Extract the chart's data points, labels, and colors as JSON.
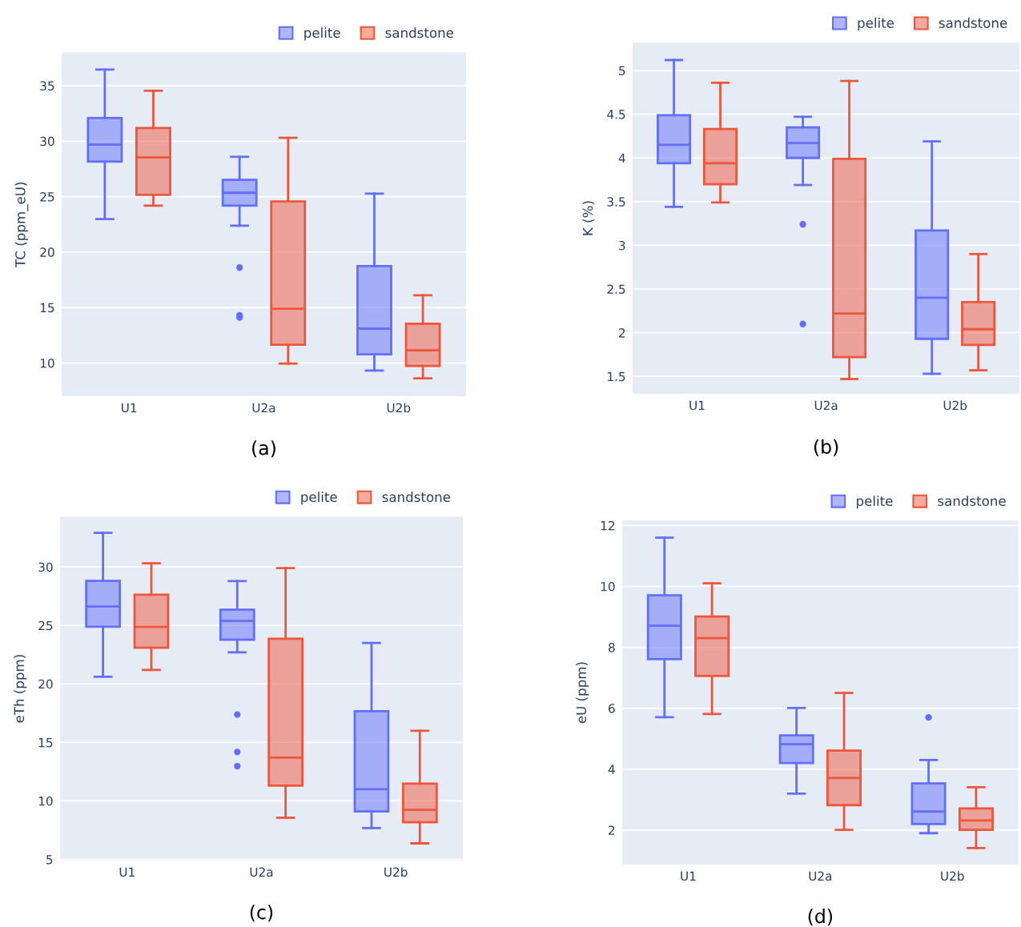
{
  "chart_data": [
    {
      "type": "box",
      "ylabel": "TC (ppm_eU)",
      "categories": [
        "U1",
        "U2a",
        "U2b"
      ],
      "ylim": [
        7,
        38
      ],
      "yticks": [
        10,
        15,
        20,
        25,
        30,
        35
      ],
      "grid": "y",
      "legend": "top right",
      "annotations": [
        "(a)"
      ],
      "series": [
        {
          "name": "pelite",
          "color": "#636efa",
          "boxes": [
            {
              "low": 22.97,
              "q1": 28.16,
              "median": 29.68,
              "q3": 32.08,
              "high": 36.46
            },
            {
              "low": 22.38,
              "q1": 24.19,
              "median": 25.35,
              "q3": 26.51,
              "high": 28.59,
              "outliers": [
                18.6,
                14.3,
                14.1
              ]
            },
            {
              "low": 9.32,
              "q1": 10.78,
              "median": 13.1,
              "q3": 18.73,
              "high": 25.27
            }
          ]
        },
        {
          "name": "sandstone",
          "color": "#ef553b",
          "boxes": [
            {
              "low": 24.19,
              "q1": 25.16,
              "median": 28.54,
              "q3": 31.19,
              "high": 34.54
            },
            {
              "low": 9.95,
              "q1": 11.65,
              "median": 14.89,
              "q3": 24.57,
              "high": 30.3
            },
            {
              "low": 8.62,
              "q1": 9.73,
              "median": 11.14,
              "q3": 13.54,
              "high": 16.1
            }
          ]
        }
      ]
    },
    {
      "type": "box",
      "ylabel": "K (%)",
      "categories": [
        "U1",
        "U2a",
        "U2b"
      ],
      "ylim": [
        1.3,
        5.32
      ],
      "yticks": [
        1.5,
        2,
        2.5,
        3,
        3.5,
        4,
        4.5,
        5
      ],
      "grid": "y",
      "legend": "top right",
      "annotations": [
        "(b)"
      ],
      "series": [
        {
          "name": "pelite",
          "color": "#636efa",
          "boxes": [
            {
              "low": 3.44,
              "q1": 3.94,
              "median": 4.15,
              "q3": 4.49,
              "high": 5.12
            },
            {
              "low": 3.69,
              "q1": 4.0,
              "median": 4.17,
              "q3": 4.35,
              "high": 4.47,
              "outliers": [
                3.24,
                2.1
              ]
            },
            {
              "low": 1.53,
              "q1": 1.93,
              "median": 2.4,
              "q3": 3.17,
              "high": 4.19
            }
          ]
        },
        {
          "name": "sandstone",
          "color": "#ef553b",
          "boxes": [
            {
              "low": 3.49,
              "q1": 3.7,
              "median": 3.94,
              "q3": 4.33,
              "high": 4.86
            },
            {
              "low": 1.47,
              "q1": 1.72,
              "median": 2.22,
              "q3": 3.99,
              "high": 4.88
            },
            {
              "low": 1.57,
              "q1": 1.86,
              "median": 2.04,
              "q3": 2.35,
              "high": 2.9
            }
          ]
        }
      ]
    },
    {
      "type": "box",
      "ylabel": "eTh (ppm)",
      "categories": [
        "U1",
        "U2a",
        "U2b"
      ],
      "ylim": [
        4.9,
        34.3
      ],
      "yticks": [
        5,
        10,
        15,
        20,
        25,
        30
      ],
      "grid": "y",
      "legend": "top right",
      "annotations": [
        "(c)"
      ],
      "series": [
        {
          "name": "pelite",
          "color": "#636efa",
          "boxes": [
            {
              "low": 20.61,
              "q1": 24.89,
              "median": 26.62,
              "q3": 28.81,
              "high": 32.92
            },
            {
              "low": 22.7,
              "q1": 23.78,
              "median": 25.38,
              "q3": 26.34,
              "high": 28.79,
              "outliers": [
                17.38,
                14.18,
                12.97
              ]
            },
            {
              "low": 7.68,
              "q1": 9.1,
              "median": 10.99,
              "q3": 17.67,
              "high": 23.5
            }
          ]
        },
        {
          "name": "sandstone",
          "color": "#ef553b",
          "boxes": [
            {
              "low": 21.2,
              "q1": 23.09,
              "median": 24.87,
              "q3": 27.63,
              "high": 30.31
            },
            {
              "low": 8.56,
              "q1": 11.3,
              "median": 13.7,
              "q3": 23.86,
              "high": 29.9
            },
            {
              "low": 6.37,
              "q1": 8.17,
              "median": 9.23,
              "q3": 11.48,
              "high": 15.99
            }
          ]
        }
      ]
    },
    {
      "type": "box",
      "ylabel": "eU (ppm)",
      "categories": [
        "U1",
        "U2a",
        "U2b"
      ],
      "ylim": [
        0.87,
        12.16
      ],
      "yticks": [
        2,
        4,
        6,
        8,
        10,
        12
      ],
      "grid": "y",
      "legend": "top right",
      "annotations": [
        "(d)"
      ],
      "series": [
        {
          "name": "pelite",
          "color": "#636efa",
          "boxes": [
            {
              "low": 5.71,
              "q1": 7.61,
              "median": 8.71,
              "q3": 9.71,
              "high": 11.6
            },
            {
              "low": 3.2,
              "q1": 4.2,
              "median": 4.82,
              "q3": 5.11,
              "high": 6.01
            },
            {
              "low": 1.9,
              "q1": 2.2,
              "median": 2.61,
              "q3": 3.53,
              "high": 4.3,
              "outliers": [
                5.7
              ]
            }
          ]
        },
        {
          "name": "sandstone",
          "color": "#ef553b",
          "boxes": [
            {
              "low": 5.81,
              "q1": 7.06,
              "median": 8.3,
              "q3": 9.01,
              "high": 10.1
            },
            {
              "low": 2.01,
              "q1": 2.82,
              "median": 3.71,
              "q3": 4.61,
              "high": 6.5
            },
            {
              "low": 1.41,
              "q1": 2.01,
              "median": 2.32,
              "q3": 2.71,
              "high": 3.41
            }
          ]
        }
      ]
    }
  ]
}
